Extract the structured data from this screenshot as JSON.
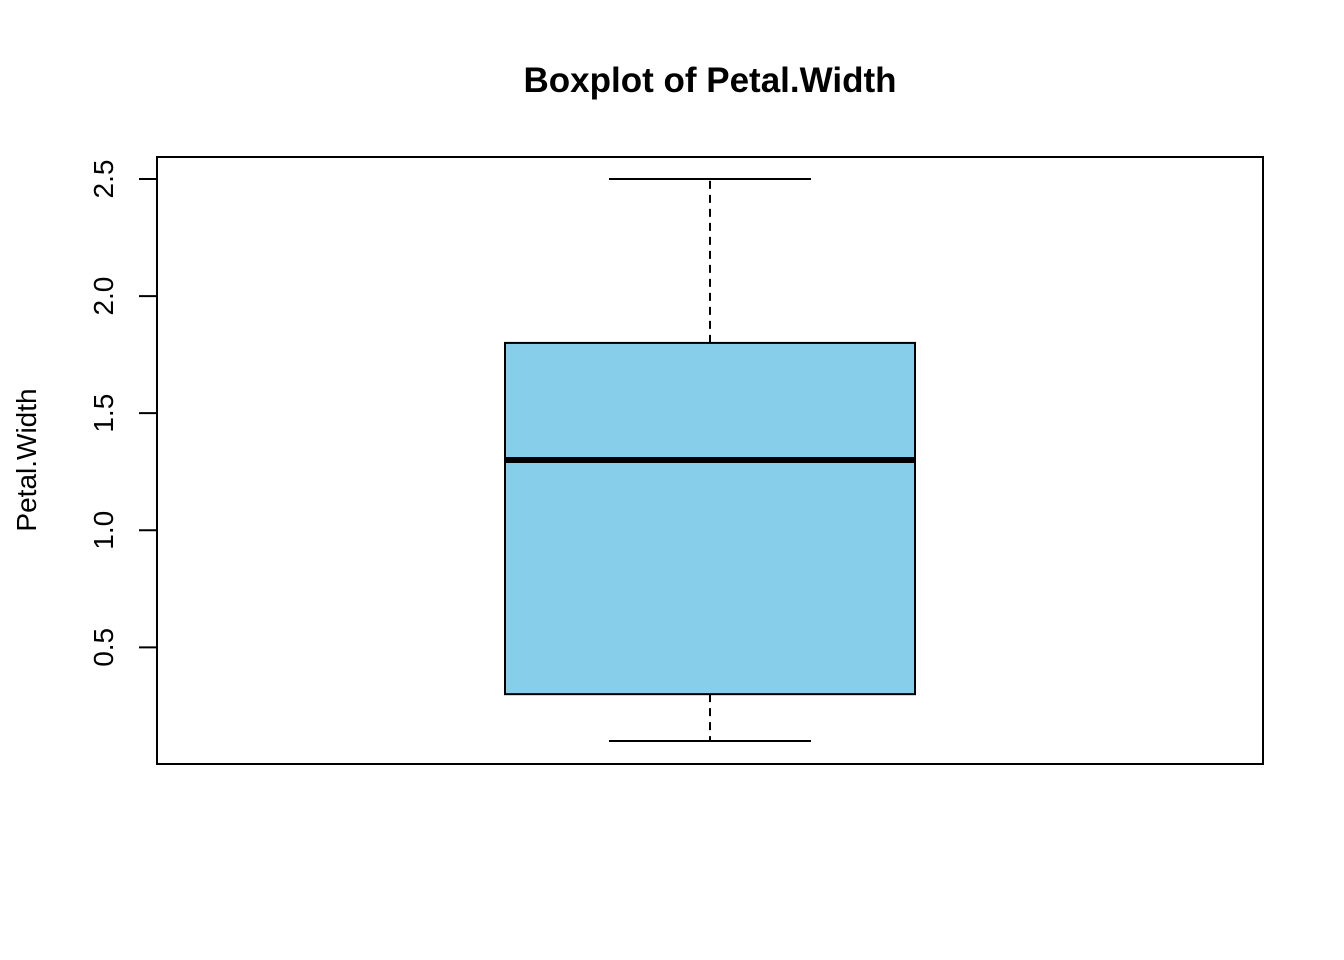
{
  "chart_data": {
    "type": "boxplot",
    "title": "Boxplot of Petal.Width",
    "ylabel": "Petal.Width",
    "xlabel": "",
    "ylim": [
      0.1,
      2.5
    ],
    "yticks": [
      0.5,
      1.0,
      1.5,
      2.0,
      2.5
    ],
    "ytick_labels": [
      "0.5",
      "1.0",
      "1.5",
      "2.0",
      "2.5"
    ],
    "grid": false,
    "box": {
      "min": 0.1,
      "q1": 0.3,
      "median": 1.3,
      "q3": 1.8,
      "max": 2.5,
      "fill": "#87CEEB"
    }
  }
}
